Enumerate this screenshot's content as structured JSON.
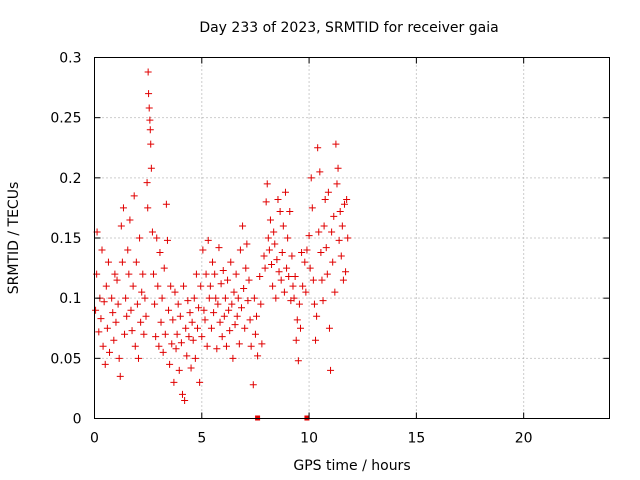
{
  "chart_data": {
    "type": "scatter",
    "title": "Day 233 of 2023, SRMTID for receiver gaia",
    "xlabel": "GPS time / hours",
    "ylabel": "SRMTID / TECUs",
    "xlim": [
      0,
      24
    ],
    "ylim": [
      0,
      0.3
    ],
    "xticks": [
      0,
      5,
      10,
      15,
      20
    ],
    "yticks": [
      0,
      0.05,
      0.1,
      0.15,
      0.2,
      0.25,
      0.3
    ],
    "grid": true,
    "marker": "plus",
    "color": "#e00000",
    "data_span_hours": [
      0,
      11.8
    ],
    "series": [
      {
        "name": "SRMTID",
        "points": [
          [
            0.05,
            0.09
          ],
          [
            0.1,
            0.12
          ],
          [
            0.12,
            0.155
          ],
          [
            0.2,
            0.072
          ],
          [
            0.25,
            0.1
          ],
          [
            0.3,
            0.083
          ],
          [
            0.35,
            0.14
          ],
          [
            0.4,
            0.06
          ],
          [
            0.45,
            0.097
          ],
          [
            0.5,
            0.045
          ],
          [
            0.55,
            0.11
          ],
          [
            0.6,
            0.075
          ],
          [
            0.65,
            0.13
          ],
          [
            0.7,
            0.055
          ],
          [
            0.8,
            0.1
          ],
          [
            0.85,
            0.088
          ],
          [
            0.9,
            0.065
          ],
          [
            0.95,
            0.12
          ],
          [
            1.0,
            0.08
          ],
          [
            1.05,
            0.115
          ],
          [
            1.1,
            0.095
          ],
          [
            1.15,
            0.05
          ],
          [
            1.2,
            0.035
          ],
          [
            1.25,
            0.16
          ],
          [
            1.3,
            0.13
          ],
          [
            1.35,
            0.175
          ],
          [
            1.4,
            0.07
          ],
          [
            1.45,
            0.1
          ],
          [
            1.5,
            0.085
          ],
          [
            1.55,
            0.14
          ],
          [
            1.6,
            0.12
          ],
          [
            1.65,
            0.165
          ],
          [
            1.7,
            0.09
          ],
          [
            1.75,
            0.073
          ],
          [
            1.8,
            0.11
          ],
          [
            1.85,
            0.185
          ],
          [
            1.9,
            0.06
          ],
          [
            1.95,
            0.13
          ],
          [
            2.0,
            0.095
          ],
          [
            2.05,
            0.05
          ],
          [
            2.1,
            0.15
          ],
          [
            2.15,
            0.08
          ],
          [
            2.2,
            0.105
          ],
          [
            2.25,
            0.12
          ],
          [
            2.3,
            0.07
          ],
          [
            2.35,
            0.1
          ],
          [
            2.4,
            0.085
          ],
          [
            2.45,
            0.196
          ],
          [
            2.48,
            0.175
          ],
          [
            2.5,
            0.288
          ],
          [
            2.52,
            0.27
          ],
          [
            2.55,
            0.258
          ],
          [
            2.58,
            0.248
          ],
          [
            2.6,
            0.24
          ],
          [
            2.62,
            0.228
          ],
          [
            2.65,
            0.208
          ],
          [
            2.7,
            0.155
          ],
          [
            2.75,
            0.12
          ],
          [
            2.8,
            0.095
          ],
          [
            2.85,
            0.068
          ],
          [
            2.9,
            0.15
          ],
          [
            2.95,
            0.11
          ],
          [
            3.0,
            0.06
          ],
          [
            3.05,
            0.138
          ],
          [
            3.1,
            0.08
          ],
          [
            3.15,
            0.1
          ],
          [
            3.2,
            0.055
          ],
          [
            3.25,
            0.125
          ],
          [
            3.3,
            0.07
          ],
          [
            3.35,
            0.178
          ],
          [
            3.4,
            0.148
          ],
          [
            3.45,
            0.09
          ],
          [
            3.5,
            0.045
          ],
          [
            3.55,
            0.11
          ],
          [
            3.6,
            0.062
          ],
          [
            3.65,
            0.082
          ],
          [
            3.7,
            0.03
          ],
          [
            3.75,
            0.105
          ],
          [
            3.8,
            0.058
          ],
          [
            3.85,
            0.07
          ],
          [
            3.9,
            0.095
          ],
          [
            3.95,
            0.04
          ],
          [
            4.0,
            0.085
          ],
          [
            4.05,
            0.063
          ],
          [
            4.1,
            0.02
          ],
          [
            4.15,
            0.11
          ],
          [
            4.2,
            0.015
          ],
          [
            4.25,
            0.075
          ],
          [
            4.3,
            0.052
          ],
          [
            4.35,
            0.098
          ],
          [
            4.4,
            0.068
          ],
          [
            4.45,
            0.088
          ],
          [
            4.5,
            0.042
          ],
          [
            4.55,
            0.08
          ],
          [
            4.6,
            0.065
          ],
          [
            4.65,
            0.1
          ],
          [
            4.7,
            0.05
          ],
          [
            4.75,
            0.12
          ],
          [
            4.8,
            0.075
          ],
          [
            4.85,
            0.092
          ],
          [
            4.9,
            0.03
          ],
          [
            4.95,
            0.11
          ],
          [
            5.0,
            0.068
          ],
          [
            5.05,
            0.14
          ],
          [
            5.1,
            0.09
          ],
          [
            5.15,
            0.082
          ],
          [
            5.2,
            0.12
          ],
          [
            5.25,
            0.06
          ],
          [
            5.3,
            0.148
          ],
          [
            5.35,
            0.1
          ],
          [
            5.4,
            0.11
          ],
          [
            5.45,
            0.075
          ],
          [
            5.5,
            0.13
          ],
          [
            5.55,
            0.088
          ],
          [
            5.6,
            0.12
          ],
          [
            5.65,
            0.1
          ],
          [
            5.7,
            0.058
          ],
          [
            5.75,
            0.095
          ],
          [
            5.8,
            0.142
          ],
          [
            5.85,
            0.08
          ],
          [
            5.9,
            0.112
          ],
          [
            5.95,
            0.068
          ],
          [
            6.0,
            0.123
          ],
          [
            6.05,
            0.085
          ],
          [
            6.1,
            0.1
          ],
          [
            6.15,
            0.06
          ],
          [
            6.2,
            0.115
          ],
          [
            6.25,
            0.09
          ],
          [
            6.3,
            0.073
          ],
          [
            6.35,
            0.13
          ],
          [
            6.4,
            0.095
          ],
          [
            6.45,
            0.05
          ],
          [
            6.5,
            0.105
          ],
          [
            6.55,
            0.078
          ],
          [
            6.6,
            0.12
          ],
          [
            6.65,
            0.085
          ],
          [
            6.7,
            0.1
          ],
          [
            6.75,
            0.062
          ],
          [
            6.8,
            0.14
          ],
          [
            6.85,
            0.092
          ],
          [
            6.9,
            0.16
          ],
          [
            6.95,
            0.108
          ],
          [
            7.0,
            0.075
          ],
          [
            7.05,
            0.125
          ],
          [
            7.1,
            0.145
          ],
          [
            7.15,
            0.098
          ],
          [
            7.2,
            0.115
          ],
          [
            7.25,
            0.082
          ],
          [
            7.3,
            0.06
          ],
          [
            7.4,
            0.028
          ],
          [
            7.45,
            0.1
          ],
          [
            7.5,
            0.07
          ],
          [
            7.55,
            0.085
          ],
          [
            7.6,
            0.052
          ],
          [
            7.7,
            0.118
          ],
          [
            7.75,
            0.095
          ],
          [
            7.8,
            0.062
          ],
          [
            7.9,
            0.135
          ],
          [
            7.95,
            0.125
          ],
          [
            8.0,
            0.18
          ],
          [
            8.05,
            0.195
          ],
          [
            8.1,
            0.15
          ],
          [
            8.15,
            0.14
          ],
          [
            8.2,
            0.165
          ],
          [
            8.25,
            0.128
          ],
          [
            8.3,
            0.11
          ],
          [
            8.35,
            0.155
          ],
          [
            8.4,
            0.145
          ],
          [
            8.45,
            0.1
          ],
          [
            8.5,
            0.132
          ],
          [
            8.55,
            0.182
          ],
          [
            8.6,
            0.122
          ],
          [
            8.65,
            0.172
          ],
          [
            8.7,
            0.115
          ],
          [
            8.75,
            0.138
          ],
          [
            8.8,
            0.16
          ],
          [
            8.85,
            0.105
          ],
          [
            8.9,
            0.188
          ],
          [
            8.95,
            0.125
          ],
          [
            9.0,
            0.15
          ],
          [
            9.05,
            0.118
          ],
          [
            9.1,
            0.172
          ],
          [
            9.15,
            0.098
          ],
          [
            9.2,
            0.135
          ],
          [
            9.25,
            0.11
          ],
          [
            9.3,
            0.1
          ],
          [
            9.35,
            0.118
          ],
          [
            9.4,
            0.065
          ],
          [
            9.45,
            0.082
          ],
          [
            9.5,
            0.048
          ],
          [
            9.55,
            0.095
          ],
          [
            9.6,
            0.075
          ],
          [
            9.65,
            0.138
          ],
          [
            9.7,
            0.11
          ],
          [
            9.8,
            0.13
          ],
          [
            9.85,
            0.105
          ],
          [
            9.9,
            0.14
          ],
          [
            10.0,
            0.152
          ],
          [
            10.05,
            0.125
          ],
          [
            10.1,
            0.2
          ],
          [
            10.15,
            0.175
          ],
          [
            10.2,
            0.115
          ],
          [
            10.25,
            0.095
          ],
          [
            10.3,
            0.065
          ],
          [
            10.35,
            0.085
          ],
          [
            10.4,
            0.225
          ],
          [
            10.45,
            0.155
          ],
          [
            10.5,
            0.205
          ],
          [
            10.55,
            0.138
          ],
          [
            10.6,
            0.115
          ],
          [
            10.65,
            0.098
          ],
          [
            10.7,
            0.16
          ],
          [
            10.75,
            0.182
          ],
          [
            10.8,
            0.142
          ],
          [
            10.85,
            0.12
          ],
          [
            10.9,
            0.188
          ],
          [
            10.95,
            0.075
          ],
          [
            11.0,
            0.04
          ],
          [
            11.05,
            0.155
          ],
          [
            11.1,
            0.13
          ],
          [
            11.15,
            0.168
          ],
          [
            11.2,
            0.105
          ],
          [
            11.25,
            0.228
          ],
          [
            11.3,
            0.195
          ],
          [
            11.35,
            0.208
          ],
          [
            11.4,
            0.148
          ],
          [
            11.45,
            0.172
          ],
          [
            11.5,
            0.135
          ],
          [
            11.55,
            0.16
          ],
          [
            11.6,
            0.115
          ],
          [
            11.65,
            0.178
          ],
          [
            11.7,
            0.122
          ],
          [
            11.75,
            0.182
          ],
          [
            11.8,
            0.15
          ]
        ]
      }
    ],
    "gap_markers": [
      7.6,
      9.9
    ]
  }
}
